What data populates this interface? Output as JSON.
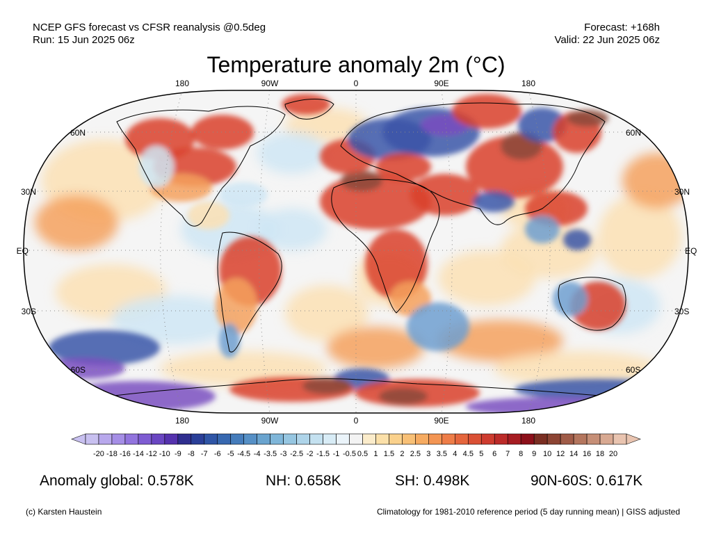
{
  "header": {
    "left_line1": "NCEP GFS forecast vs CFSR reanalysis @0.5deg",
    "left_line2": "Run: 15 Jun 2025 06z",
    "right_line1": "Forecast: +168h",
    "right_line2": "Valid: 22 Jun 2025 06z"
  },
  "title": "Temperature anomaly 2m (°C)",
  "map": {
    "lon_labels": [
      "180",
      "90W",
      "0",
      "90E",
      "180"
    ],
    "lat_labels_left": [
      "60N",
      "30N",
      "EQ",
      "30S",
      "60S"
    ],
    "lat_labels_right": [
      "60N",
      "30N",
      "EQ",
      "30S",
      "60S"
    ],
    "projection": "Robinson",
    "colors": {
      "ocean_neutral": "#f5f5f5",
      "warm_light": "#fce0b4",
      "warm_mid": "#f4a15d",
      "warm_strong": "#d9412b",
      "hot_extreme": "#8b4a3a",
      "cool_light": "#cfe6f5",
      "cool_mid": "#6f9fd0",
      "cold_strong": "#3b55a8",
      "cold_extreme": "#7a4fc0"
    }
  },
  "colorbar": {
    "labels": [
      "-20",
      "-18",
      "-16",
      "-14",
      "-12",
      "-10",
      "-9",
      "-8",
      "-7",
      "-6",
      "-5",
      "-4.5",
      "-4",
      "-3.5",
      "-3",
      "-2.5",
      "-2",
      "-1.5",
      "-1",
      "-0.5",
      "0.5",
      "1",
      "1.5",
      "2",
      "2.5",
      "3",
      "3.5",
      "4",
      "4.5",
      "5",
      "6",
      "7",
      "8",
      "9",
      "10",
      "12",
      "14",
      "16",
      "18",
      "20"
    ],
    "colors": [
      "#c8c0f0",
      "#b8a8ec",
      "#a58ee6",
      "#9274de",
      "#7e5cd2",
      "#6a46c2",
      "#5532ae",
      "#2f2e8f",
      "#2a3f98",
      "#2f55a6",
      "#3768b0",
      "#457cbb",
      "#5690c6",
      "#6aa4cf",
      "#7fb6d9",
      "#96c6e1",
      "#aed4e9",
      "#c4e1f0",
      "#d8ecf6",
      "#ebf4fa",
      "#f3f3f3",
      "#fbeccb",
      "#fbe0a9",
      "#fad18c",
      "#f8c076",
      "#f6ab61",
      "#f39553",
      "#ee7d48",
      "#e5663d",
      "#da5035",
      "#ce3c2f",
      "#bc2b29",
      "#a61c22",
      "#8c101a",
      "#7a2e22",
      "#8c4433",
      "#a05c48",
      "#b4765e",
      "#c68f77",
      "#d8a992",
      "#e9c4b0"
    ]
  },
  "stats": {
    "global": "Anomaly global: 0.578K",
    "nh": "NH: 0.658K",
    "sh": "SH: 0.498K",
    "arctic_band": "90N-60S: 0.617K"
  },
  "footer": {
    "credit": "(c) Karsten Haustein",
    "climatology": "Climatology for 1981-2010 reference period (5 day running mean) | GISS adjusted"
  }
}
